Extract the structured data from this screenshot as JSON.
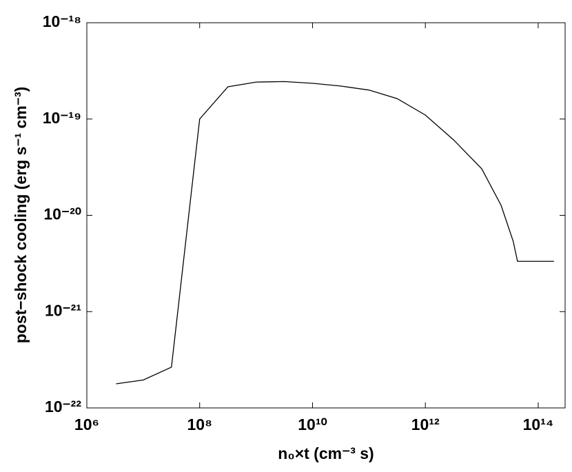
{
  "chart_data": {
    "type": "line",
    "xlabel": "n₀×t (cm⁻³ s)",
    "ylabel": "post−shock cooling (erg s⁻¹ cm⁻³)",
    "xscale": "log",
    "yscale": "log",
    "x": [
      3300000.0,
      10000000.0,
      31600000.0,
      100000000.0,
      316000000.0,
      1000000000.0,
      3160000000.0,
      10000000000.0,
      31600000000.0,
      100000000000.0,
      316000000000.0,
      1000000000000.0,
      3160000000000.0,
      10000000000000.0,
      22000000000000.0,
      36000000000000.0,
      43000000000000.0,
      190000000000000.0
    ],
    "values": [
      1.78e-22,
      1.95e-22,
      2.65e-22,
      1e-19,
      2.16e-19,
      2.42e-19,
      2.45e-19,
      2.35e-19,
      2.2e-19,
      2e-19,
      1.63e-19,
      1.1e-19,
      6.08e-20,
      3.04e-20,
      1.27e-20,
      5.4e-21,
      3.33e-21,
      3.33e-21
    ],
    "color": "#000000",
    "xlim": [
      1000000.0,
      300000000000000.0
    ],
    "ylim": [
      1e-22,
      1e-18
    ],
    "xticks": [
      {
        "value": 1000000.0,
        "label": "10⁶"
      },
      {
        "value": 100000000.0,
        "label": "10⁸"
      },
      {
        "value": 10000000000.0,
        "label": "10¹⁰"
      },
      {
        "value": 1000000000000.0,
        "label": "10¹²"
      },
      {
        "value": 100000000000000.0,
        "label": "10¹⁴"
      }
    ],
    "yticks": [
      {
        "value": 1e-22,
        "label": "10⁻²²"
      },
      {
        "value": 1e-21,
        "label": "10⁻²¹"
      },
      {
        "value": 1e-20,
        "label": "10⁻²⁰"
      },
      {
        "value": 1e-19,
        "label": "10⁻¹⁹"
      },
      {
        "value": 1e-18,
        "label": "10⁻¹⁸"
      }
    ]
  }
}
